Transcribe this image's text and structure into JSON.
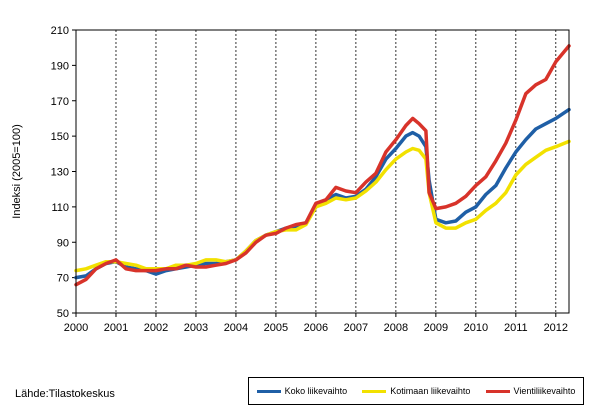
{
  "chart_data": {
    "type": "line",
    "ylabel": "Indeksi (2005=100)",
    "xlabel": "",
    "ylim": [
      50,
      210
    ],
    "xlim": [
      2000,
      2012.33
    ],
    "yticks": [
      50,
      70,
      90,
      110,
      130,
      150,
      170,
      190,
      210
    ],
    "xticks": [
      "2000",
      "2001",
      "2002",
      "2003",
      "2004",
      "2005",
      "2006",
      "2007",
      "2008",
      "2009",
      "2010",
      "2011",
      "2012"
    ],
    "grid": "vertical dashed at years",
    "legend_position": "bottom-right",
    "series": [
      {
        "name": "Koko liikevaihto",
        "color": "#1f5fa6",
        "x": [
          2000,
          2000.25,
          2000.5,
          2000.75,
          2001,
          2001.25,
          2001.5,
          2001.75,
          2002,
          2002.25,
          2002.5,
          2002.75,
          2003,
          2003.25,
          2003.5,
          2003.75,
          2004,
          2004.25,
          2004.5,
          2004.75,
          2005,
          2005.25,
          2005.5,
          2005.75,
          2006,
          2006.25,
          2006.5,
          2006.75,
          2007,
          2007.25,
          2007.5,
          2007.75,
          2008,
          2008.25,
          2008.42,
          2008.58,
          2008.75,
          2008.83,
          2009,
          2009.25,
          2009.5,
          2009.75,
          2010,
          2010.25,
          2010.5,
          2010.75,
          2011,
          2011.25,
          2011.5,
          2011.75,
          2012,
          2012.33
        ],
        "y": [
          70,
          71,
          75,
          78,
          79,
          76,
          75,
          74,
          72,
          74,
          75,
          76,
          77,
          78,
          78,
          79,
          80,
          85,
          91,
          94,
          96,
          98,
          99,
          101,
          110,
          114,
          117,
          115,
          116,
          120,
          127,
          137,
          143,
          150,
          152,
          150,
          144,
          125,
          103,
          101,
          102,
          107,
          110,
          117,
          122,
          132,
          141,
          148,
          154,
          157,
          160,
          165
        ]
      },
      {
        "name": "Kotimaan liikevaihto",
        "color": "#f2e100",
        "x": [
          2000,
          2000.25,
          2000.5,
          2000.75,
          2001,
          2001.25,
          2001.5,
          2001.75,
          2002,
          2002.25,
          2002.5,
          2002.75,
          2003,
          2003.25,
          2003.5,
          2003.75,
          2004,
          2004.25,
          2004.5,
          2004.75,
          2005,
          2005.25,
          2005.5,
          2005.75,
          2006,
          2006.25,
          2006.5,
          2006.75,
          2007,
          2007.25,
          2007.5,
          2007.75,
          2008,
          2008.25,
          2008.42,
          2008.58,
          2008.75,
          2008.83,
          2009,
          2009.25,
          2009.5,
          2009.75,
          2010,
          2010.25,
          2010.5,
          2010.75,
          2011,
          2011.25,
          2011.5,
          2011.75,
          2012,
          2012.33
        ],
        "y": [
          74,
          75,
          77,
          79,
          79,
          78,
          77,
          75,
          75,
          75,
          77,
          77,
          78,
          80,
          80,
          79,
          80,
          85,
          91,
          94,
          96,
          97,
          97,
          100,
          110,
          112,
          115,
          114,
          115,
          119,
          124,
          131,
          137,
          141,
          143,
          142,
          137,
          118,
          101,
          98,
          98,
          101,
          103,
          108,
          112,
          118,
          128,
          134,
          138,
          142,
          144,
          147
        ]
      },
      {
        "name": "Vientiliikevaihto",
        "color": "#d8332a",
        "x": [
          2000,
          2000.25,
          2000.5,
          2000.75,
          2001,
          2001.25,
          2001.5,
          2001.75,
          2002,
          2002.25,
          2002.5,
          2002.75,
          2003,
          2003.25,
          2003.5,
          2003.75,
          2004,
          2004.25,
          2004.5,
          2004.75,
          2005,
          2005.25,
          2005.5,
          2005.75,
          2006,
          2006.25,
          2006.5,
          2006.75,
          2007,
          2007.25,
          2007.5,
          2007.75,
          2008,
          2008.25,
          2008.42,
          2008.58,
          2008.75,
          2008.83,
          2009,
          2009.25,
          2009.5,
          2009.75,
          2010,
          2010.25,
          2010.5,
          2010.75,
          2011,
          2011.25,
          2011.5,
          2011.75,
          2012,
          2012.33
        ],
        "y": [
          66,
          69,
          75,
          78,
          80,
          75,
          74,
          74,
          74,
          75,
          75,
          77,
          76,
          76,
          77,
          78,
          80,
          84,
          90,
          94,
          95,
          98,
          100,
          101,
          112,
          114,
          121,
          119,
          118,
          124,
          129,
          141,
          148,
          156,
          160,
          157,
          153,
          118,
          109,
          110,
          112,
          116,
          122,
          127,
          136,
          146,
          159,
          174,
          179,
          182,
          192,
          201
        ]
      }
    ]
  },
  "source_text": "Lähde:Tilastokeskus"
}
